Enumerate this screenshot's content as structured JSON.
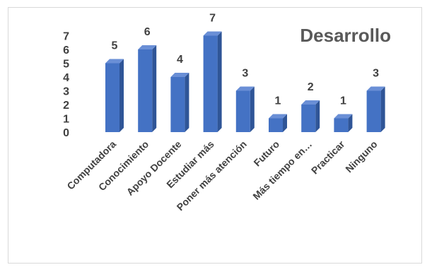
{
  "chart_data": {
    "type": "bar",
    "title": "Desarrollo",
    "categories": [
      "Computadora",
      "Conocimiento",
      "Apoyo Docente",
      "Estudiar más",
      "Poner más atención",
      "Futuro",
      "Más tiempo en…",
      "Practicar",
      "Ninguno"
    ],
    "values": [
      5,
      6,
      4,
      7,
      3,
      1,
      2,
      1,
      3
    ],
    "yticks": [
      0,
      1,
      2,
      3,
      4,
      5,
      6,
      7
    ],
    "ylim": [
      0,
      7
    ],
    "grid": false,
    "legend": "none",
    "bar_color": "#4472C4",
    "bar_side_color": "#2F5597",
    "bar_top_color": "#6A8FD6"
  }
}
